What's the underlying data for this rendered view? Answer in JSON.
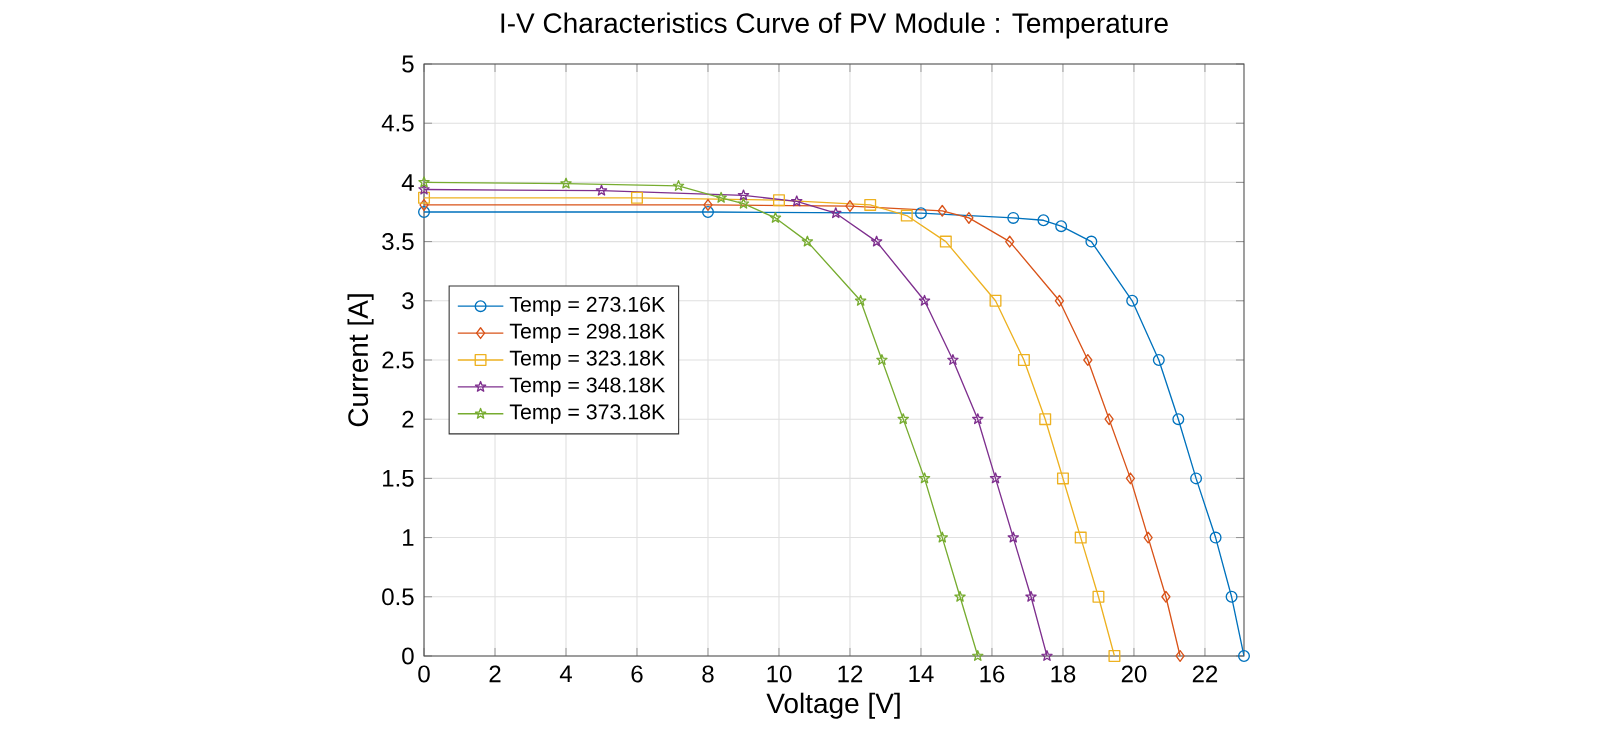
{
  "chart_data": {
    "type": "line",
    "title": "I-V Characteristics Curve of PV Module : Temperature",
    "xlabel": "Voltage [V]",
    "ylabel": "Current [A]",
    "xlim": [
      0,
      23.1
    ],
    "ylim": [
      0,
      5
    ],
    "xticks": [
      0,
      2,
      4,
      6,
      8,
      10,
      12,
      14,
      16,
      18,
      20,
      22
    ],
    "yticks": [
      0,
      0.5,
      1,
      1.5,
      2,
      2.5,
      3,
      3.5,
      4,
      4.5,
      5
    ],
    "grid": true,
    "legend": "left",
    "line_style": "solid",
    "series": [
      {
        "name": "Temp = 273.16K",
        "color": "#0072bd",
        "marker": "circle",
        "x": [
          0,
          8,
          14,
          16.6,
          17.45,
          17.95,
          18.8,
          19.95,
          20.7,
          21.25,
          21.75,
          22.3,
          22.75,
          23.1
        ],
        "values": [
          3.75,
          3.75,
          3.74,
          3.7,
          3.68,
          3.63,
          3.5,
          3,
          2.5,
          2,
          1.5,
          1,
          0.5,
          0
        ]
      },
      {
        "name": "Temp = 298.18K",
        "color": "#d95319",
        "marker": "diamond",
        "x": [
          0,
          8,
          12,
          14.6,
          15.35,
          16.5,
          17.9,
          18.7,
          19.3,
          19.9,
          20.4,
          20.9,
          21.3
        ],
        "values": [
          3.81,
          3.81,
          3.8,
          3.76,
          3.7,
          3.5,
          3,
          2.5,
          2,
          1.5,
          1,
          0.5,
          0
        ]
      },
      {
        "name": "Temp = 323.18K",
        "color": "#edb120",
        "marker": "square",
        "x": [
          0,
          6,
          10,
          12.57,
          13.6,
          14.7,
          16.1,
          16.9,
          17.5,
          18,
          18.5,
          19,
          19.45
        ],
        "values": [
          3.87,
          3.87,
          3.85,
          3.81,
          3.72,
          3.5,
          3,
          2.5,
          2,
          1.5,
          1,
          0.5,
          0
        ]
      },
      {
        "name": "Temp = 348.18K",
        "color": "#7e2f8e",
        "marker": "star",
        "x": [
          0,
          5,
          9,
          10.5,
          11.6,
          12.75,
          14.1,
          14.9,
          15.6,
          16.1,
          16.6,
          17.1,
          17.55
        ],
        "values": [
          3.94,
          3.93,
          3.89,
          3.84,
          3.74,
          3.5,
          3,
          2.5,
          2,
          1.5,
          1,
          0.5,
          0
        ]
      },
      {
        "name": "Temp = 373.18K",
        "color": "#77ac30",
        "marker": "star",
        "x": [
          0,
          4,
          7.17,
          8.37,
          9,
          9.9,
          10.8,
          12.3,
          12.9,
          13.5,
          14.1,
          14.6,
          15.1,
          15.6
        ],
        "values": [
          4.0,
          3.99,
          3.97,
          3.87,
          3.82,
          3.7,
          3.5,
          3,
          2.5,
          2,
          1.5,
          1,
          0.5,
          0
        ]
      }
    ]
  }
}
